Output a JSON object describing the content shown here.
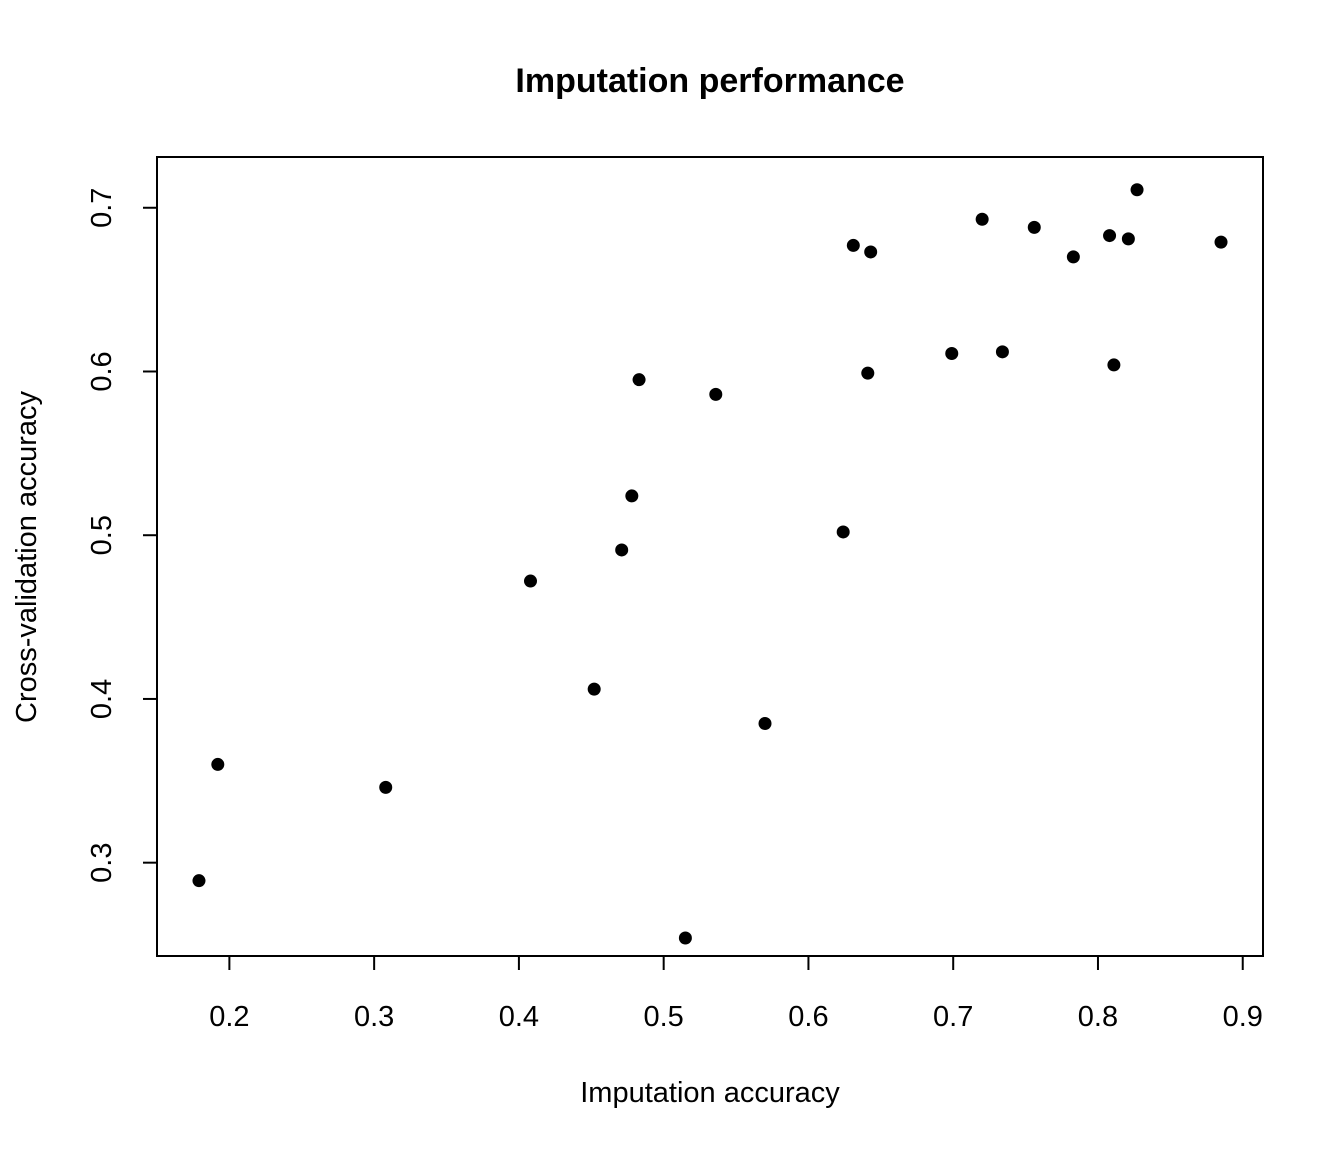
{
  "chart_data": {
    "type": "scatter",
    "title": "Imputation performance",
    "xlabel": "Imputation accuracy",
    "ylabel": "Cross-validation accuracy",
    "xlim": [
      0.15,
      0.914
    ],
    "ylim": [
      0.243,
      0.731
    ],
    "xticks": [
      0.2,
      0.3,
      0.4,
      0.5,
      0.6,
      0.7,
      0.8,
      0.9
    ],
    "xtick_labels": [
      "0.2",
      "0.3",
      "0.4",
      "0.5",
      "0.6",
      "0.7",
      "0.8",
      "0.9"
    ],
    "yticks": [
      0.3,
      0.4,
      0.5,
      0.6,
      0.7
    ],
    "ytick_labels": [
      "0.3",
      "0.4",
      "0.5",
      "0.6",
      "0.7"
    ],
    "grid": false,
    "marker_color": "#000000",
    "points": [
      {
        "x": 0.179,
        "y": 0.289
      },
      {
        "x": 0.192,
        "y": 0.36
      },
      {
        "x": 0.308,
        "y": 0.346
      },
      {
        "x": 0.408,
        "y": 0.472
      },
      {
        "x": 0.452,
        "y": 0.406
      },
      {
        "x": 0.471,
        "y": 0.491
      },
      {
        "x": 0.478,
        "y": 0.524
      },
      {
        "x": 0.483,
        "y": 0.595
      },
      {
        "x": 0.515,
        "y": 0.254
      },
      {
        "x": 0.536,
        "y": 0.586
      },
      {
        "x": 0.57,
        "y": 0.385
      },
      {
        "x": 0.624,
        "y": 0.502
      },
      {
        "x": 0.631,
        "y": 0.677
      },
      {
        "x": 0.641,
        "y": 0.599
      },
      {
        "x": 0.643,
        "y": 0.673
      },
      {
        "x": 0.699,
        "y": 0.611
      },
      {
        "x": 0.72,
        "y": 0.693
      },
      {
        "x": 0.734,
        "y": 0.612
      },
      {
        "x": 0.756,
        "y": 0.688
      },
      {
        "x": 0.783,
        "y": 0.67
      },
      {
        "x": 0.808,
        "y": 0.683
      },
      {
        "x": 0.811,
        "y": 0.604
      },
      {
        "x": 0.821,
        "y": 0.681
      },
      {
        "x": 0.827,
        "y": 0.711
      },
      {
        "x": 0.885,
        "y": 0.679
      }
    ]
  }
}
